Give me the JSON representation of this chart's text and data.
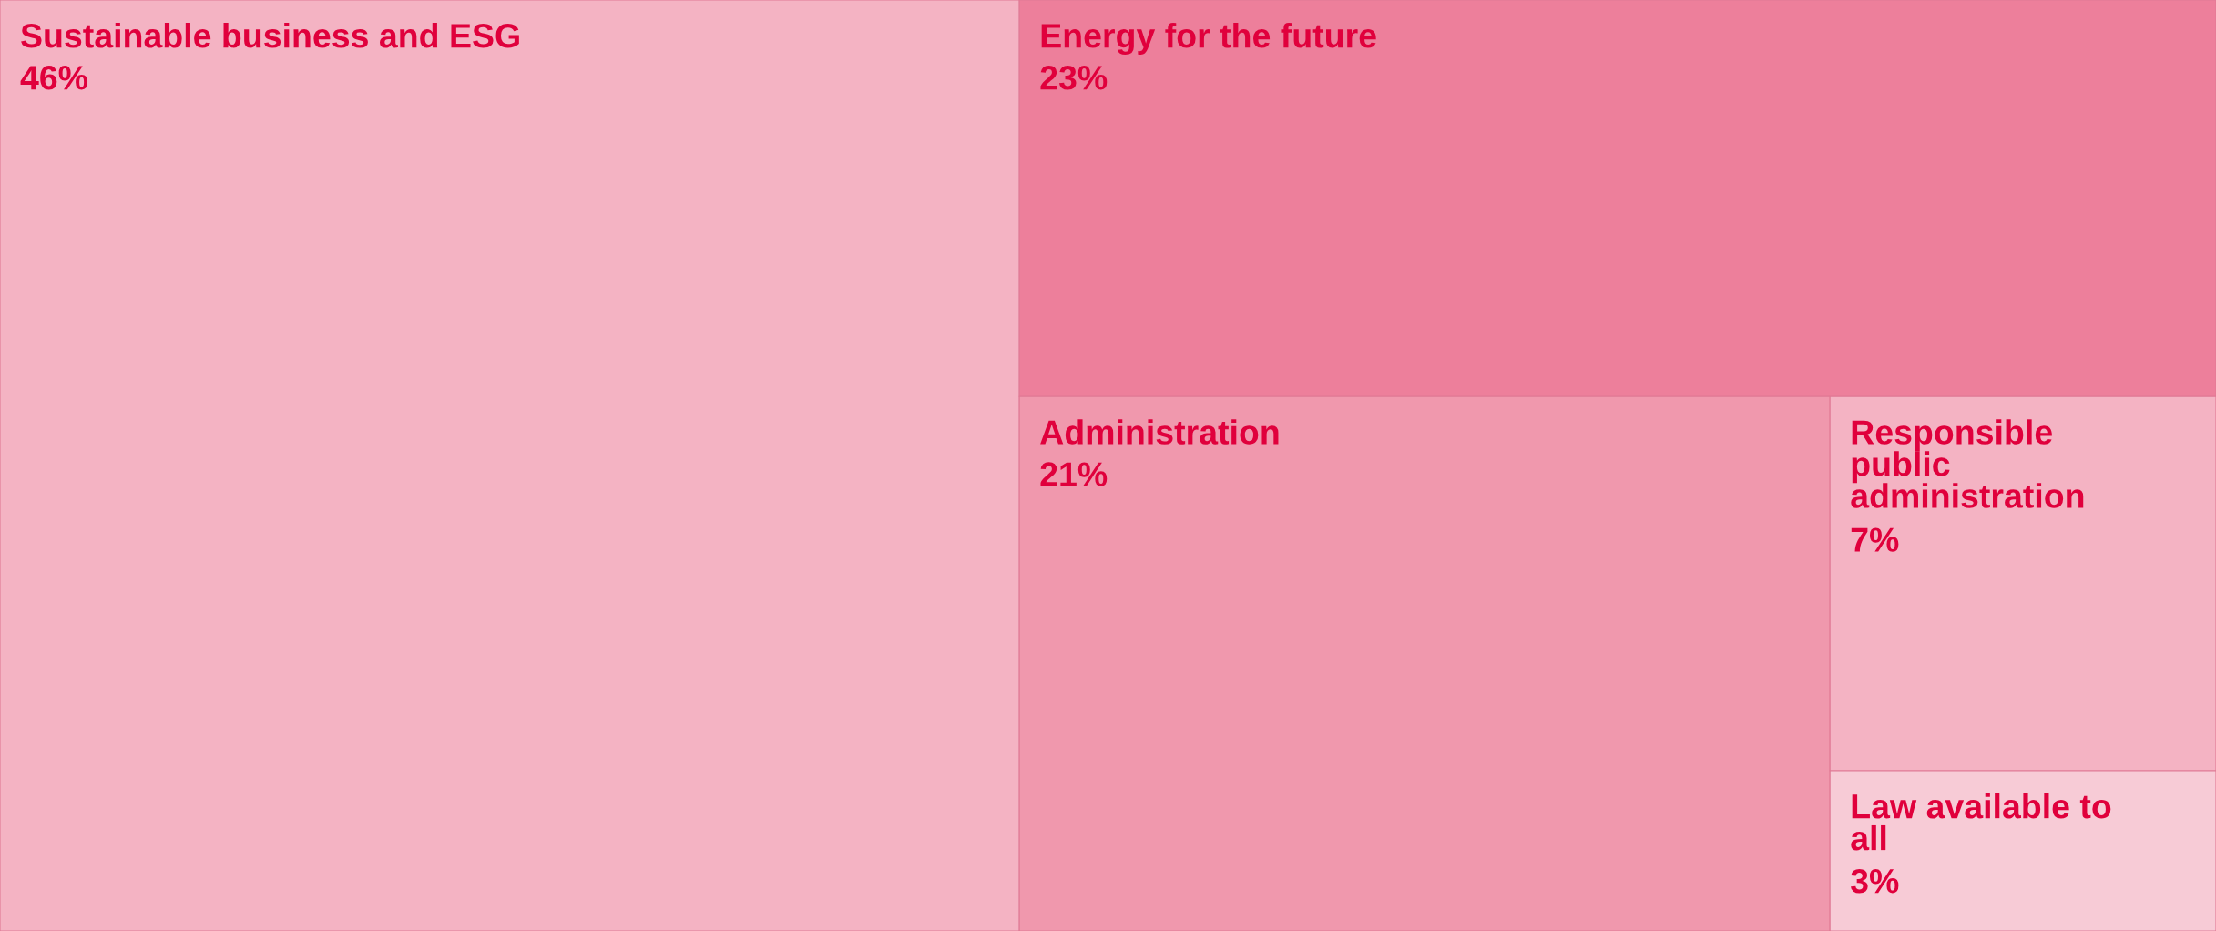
{
  "chart_data": {
    "type": "other",
    "categories": [
      "Sustainable business and ESG",
      "Energy for the future",
      "Administration",
      "Responsible public administration",
      "Law available to all"
    ],
    "values": [
      46,
      23,
      21,
      7,
      3
    ],
    "value_labels": [
      "46%",
      "23%",
      "21%",
      "7%",
      "3%"
    ],
    "colors": [
      "#f4b3c3",
      "#ed7f9b",
      "#f098ad",
      "#f4b3c3",
      "#f7cbd6"
    ]
  }
}
